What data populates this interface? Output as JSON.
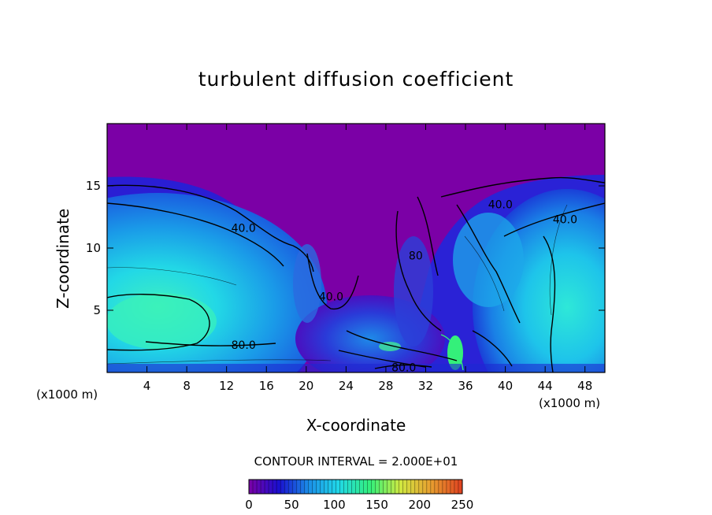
{
  "chart_data": {
    "type": "heatmap",
    "title": "turbulent diffusion coefficient",
    "xlabel": "X-coordinate",
    "ylabel": "Z-coordinate",
    "x_unit": "(x1000 m)",
    "xlim": [
      0,
      50
    ],
    "ylim": [
      0,
      20
    ],
    "x_ticks": [
      4,
      8,
      12,
      16,
      20,
      24,
      28,
      32,
      36,
      40,
      44,
      48
    ],
    "y_ticks": [
      5,
      10,
      15
    ],
    "contour_interval_text": "CONTOUR INTERVAL = 2.000E+01",
    "contour_labels": [
      {
        "text": "40.0",
        "x": 13.7,
        "z": 11.6
      },
      {
        "text": "40.0",
        "x": 22.5,
        "z": 6.1
      },
      {
        "text": "80.0",
        "x": 13.7,
        "z": 2.2
      },
      {
        "text": "80.0",
        "x": 29.8,
        "z": 0.4
      },
      {
        "text": "40.0",
        "x": 39.5,
        "z": 13.5
      },
      {
        "text": "40.0",
        "x": 46.0,
        "z": 12.3
      },
      {
        "text": "80",
        "x": 31.0,
        "z": 9.4
      }
    ],
    "colorbar": {
      "min": 0,
      "max": 250,
      "ticks": [
        0,
        50,
        100,
        150,
        200,
        250
      ],
      "colors": [
        "#7b00a6",
        "#1a0fd0",
        "#1b8ee8",
        "#20d8e8",
        "#34f07a",
        "#d0e840",
        "#e8a030",
        "#e04020"
      ]
    },
    "background_color": "#7b00a6"
  }
}
